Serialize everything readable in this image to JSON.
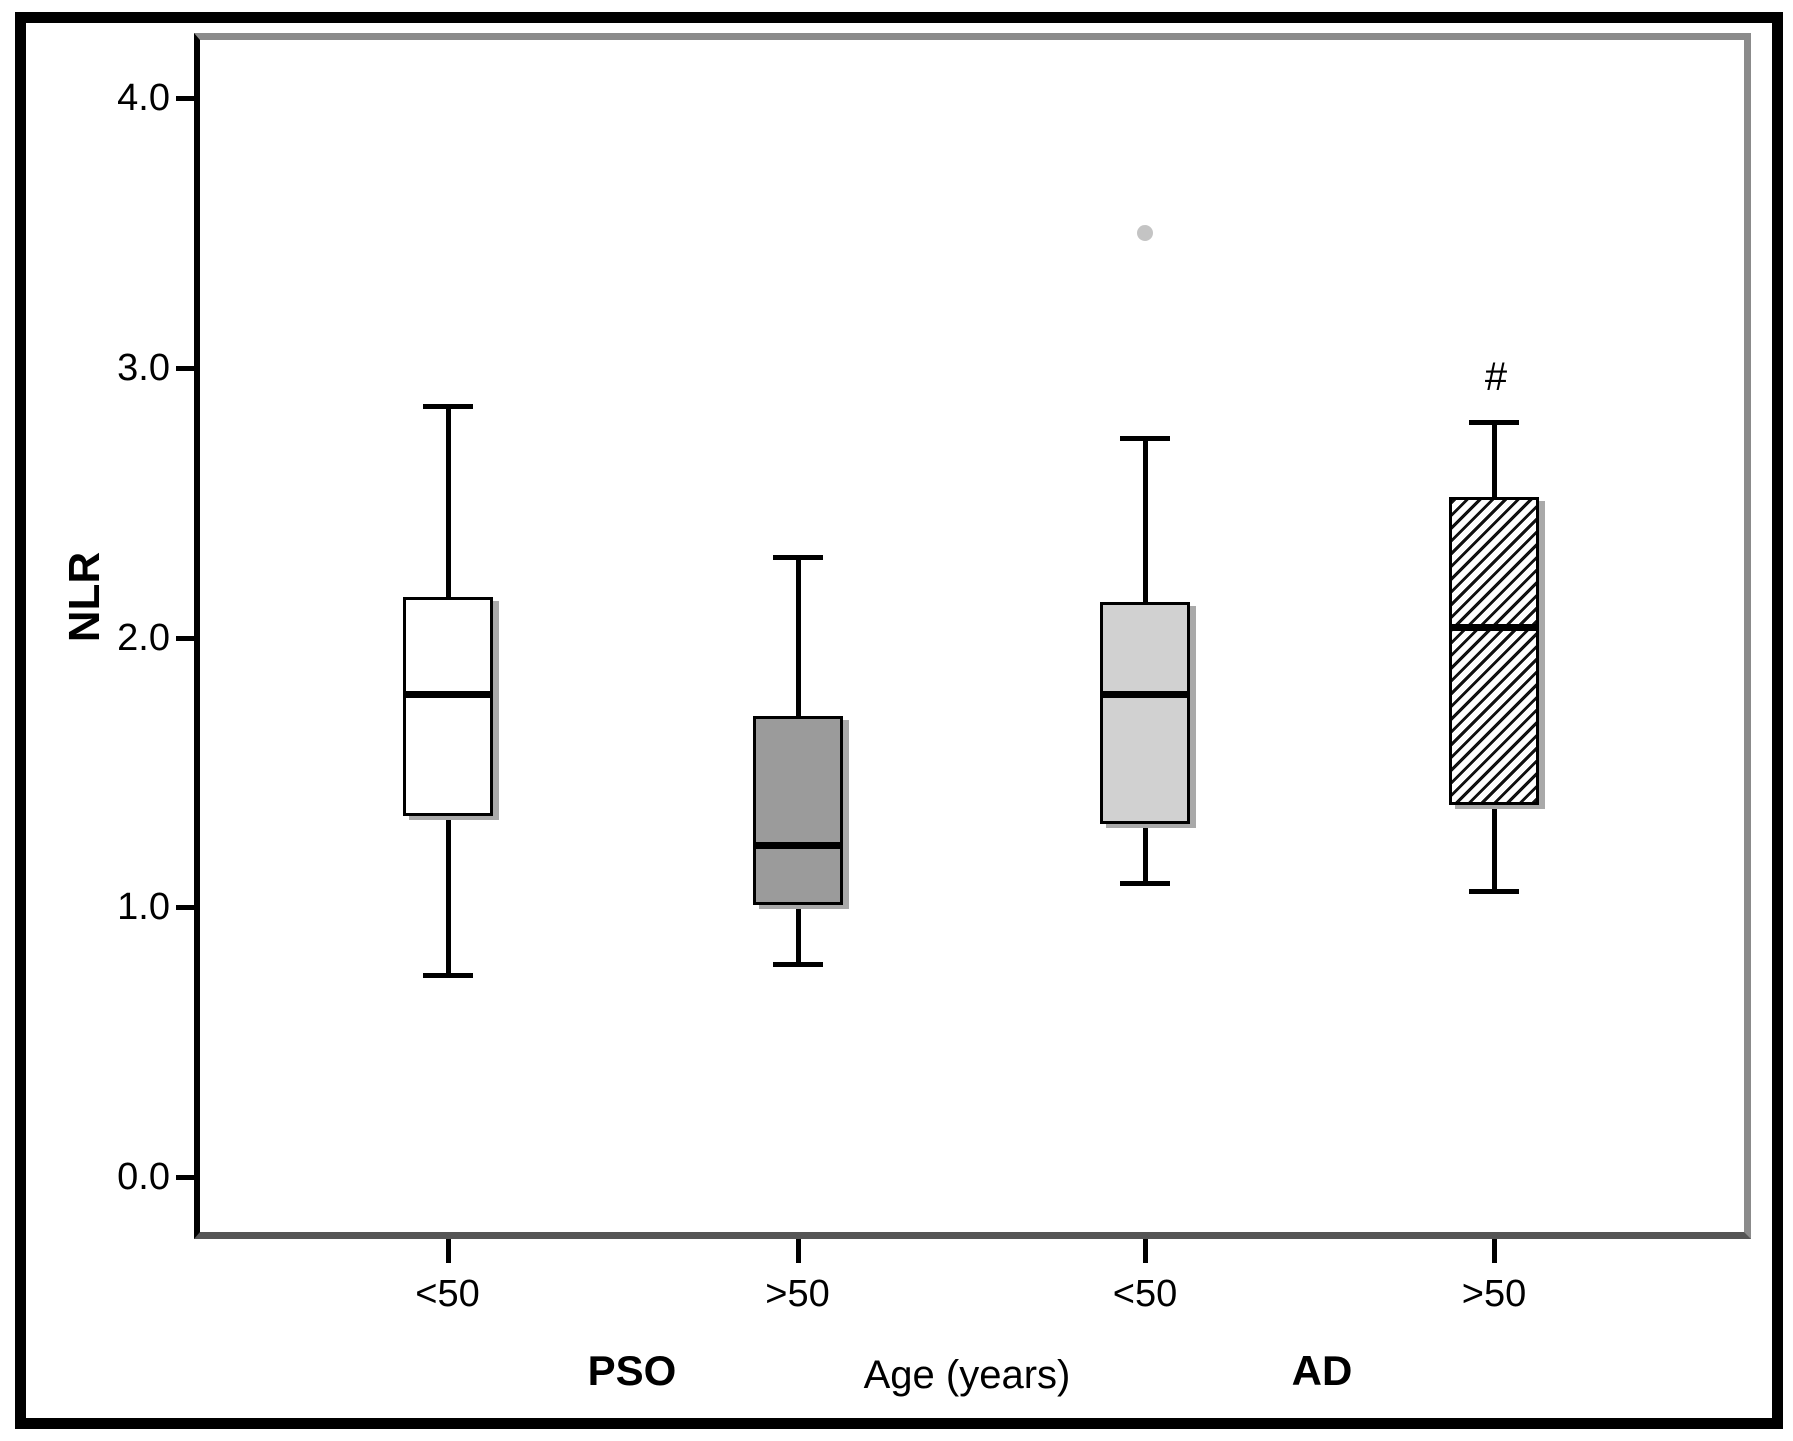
{
  "chart_data": {
    "type": "boxplot",
    "title": "",
    "ylabel": "NLR",
    "xlabel": "Age (years)",
    "ylim": [
      -0.2,
      4.2
    ],
    "grid": false,
    "legend": null,
    "group_labels": [
      "PSO",
      "AD"
    ],
    "yticks": [
      {
        "value": 0,
        "label": "0.0"
      },
      {
        "value": 1,
        "label": "1.0"
      },
      {
        "value": 2,
        "label": "2.0"
      },
      {
        "value": 3,
        "label": "3.0"
      },
      {
        "value": 4,
        "label": "4.0"
      }
    ],
    "boxes": [
      {
        "category": "<50",
        "group": "PSO",
        "fill": "#ffffff",
        "pattern": "solid",
        "whisker_low": 0.75,
        "q1": 1.34,
        "median": 1.79,
        "q3": 2.15,
        "whisker_high": 2.86,
        "outliers": [],
        "annotation": ""
      },
      {
        "category": ">50",
        "group": "PSO",
        "fill": "#9b9b9b",
        "pattern": "solid",
        "whisker_low": 0.79,
        "q1": 1.01,
        "median": 1.23,
        "q3": 1.71,
        "whisker_high": 2.3,
        "outliers": [],
        "annotation": ""
      },
      {
        "category": "<50",
        "group": "AD",
        "fill": "#d1d1d1",
        "pattern": "solid",
        "whisker_low": 1.09,
        "q1": 1.31,
        "median": 1.79,
        "q3": 2.13,
        "whisker_high": 2.74,
        "outliers": [
          3.5
        ],
        "annotation": ""
      },
      {
        "category": ">50",
        "group": "AD",
        "fill": "#ffffff",
        "pattern": "diagonal-hatch",
        "whisker_low": 1.06,
        "q1": 1.38,
        "median": 2.04,
        "q3": 2.52,
        "whisker_high": 2.8,
        "outliers": [],
        "annotation": "#"
      }
    ],
    "colors": {
      "outlier": "#c4c4c4",
      "box_border": "#000000",
      "median": "#000000",
      "frame_gray": "#8b8b8b",
      "bottom_axis": "#555555",
      "y_axis": "#000000",
      "shadow": "#a9a9a9",
      "outer_border": "#000000"
    }
  }
}
